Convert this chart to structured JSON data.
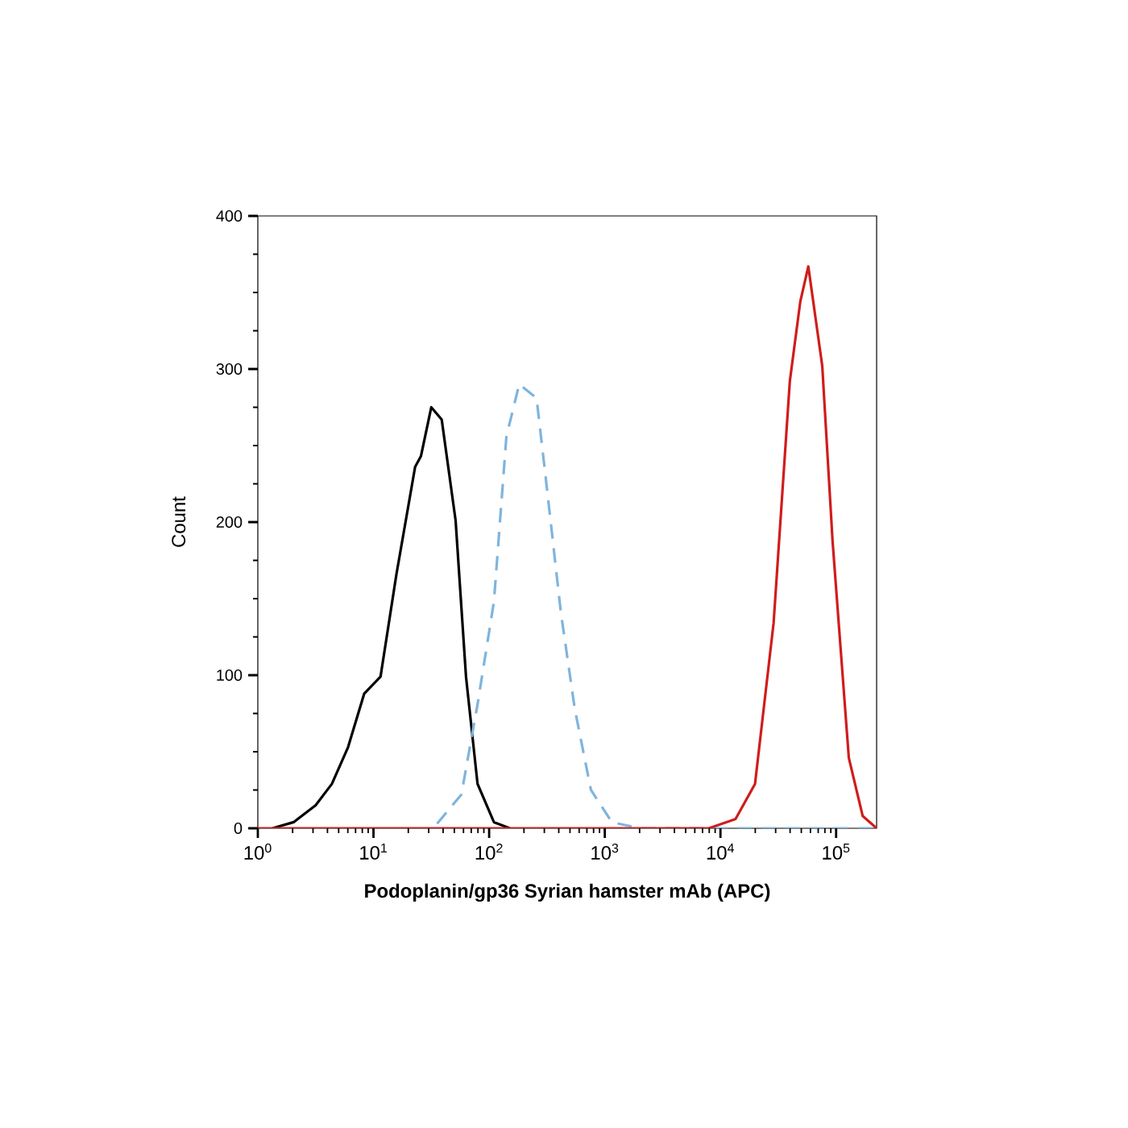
{
  "chart_data": {
    "type": "line",
    "xlabel": "Podoplanin/gp36 Syrian hamster mAb (APC)",
    "ylabel": "Count",
    "log": "x",
    "xlim": [
      1,
      224000
    ],
    "ylim": [
      0,
      400
    ],
    "xticks": [
      {
        "value": 1,
        "label": "10$^{0}$"
      },
      {
        "value": 10,
        "label": "10$^{1}$"
      },
      {
        "value": 100,
        "label": "10$^{2}$"
      },
      {
        "value": 1000,
        "label": "10$^{3}$"
      },
      {
        "value": 10000,
        "label": "10$^{4}$"
      },
      {
        "value": 100000,
        "label": "10$^{5}$"
      }
    ],
    "yticks": [
      0,
      100,
      200,
      300,
      400
    ],
    "series": [
      {
        "color": "#000000",
        "line_style": "solid",
        "x": [
          1.34,
          2.04,
          3.16,
          4.37,
          6.03,
          8.32,
          11.5,
          15.8,
          22.9,
          25.7,
          31.6,
          38.9,
          51.3,
          63.1,
          79.4,
          110,
          151
        ],
        "values": [
          0,
          4,
          15,
          29,
          53,
          88,
          99,
          166,
          236,
          243,
          275,
          267,
          201,
          99,
          29,
          4,
          0
        ]
      },
      {
        "color": "#7fb4dc",
        "line_style": "dashed",
        "x": [
          35.5,
          57.5,
          79.4,
          110,
          141,
          182,
          257,
          316,
          417,
          550,
          759,
          1150,
          2000,
          224000
        ],
        "values": [
          3,
          22,
          81,
          148,
          256,
          290,
          281,
          222,
          141,
          78,
          25,
          4,
          0,
          0
        ]
      },
      {
        "color": "#d01c1c",
        "line_style": "solid",
        "x": [
          1,
          7940,
          13500,
          19900,
          28800,
          39800,
          49000,
          57500,
          75900,
          93300,
          128800,
          169800,
          224000
        ],
        "values": [
          0,
          0,
          6,
          29,
          134,
          292,
          344,
          367,
          302,
          187,
          46,
          8,
          0
        ]
      }
    ]
  }
}
